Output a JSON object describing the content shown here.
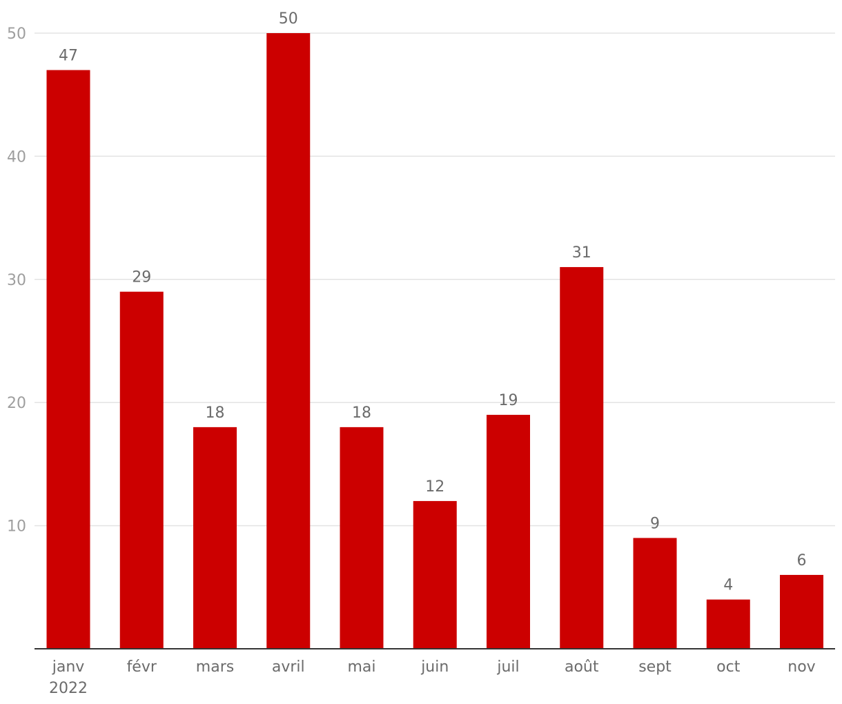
{
  "chart_data": {
    "type": "bar",
    "categories": [
      "janv",
      "févr",
      "mars",
      "avril",
      "mai",
      "juin",
      "juil",
      "août",
      "sept",
      "oct",
      "nov"
    ],
    "category_sublabels": [
      "2022",
      "",
      "",
      "",
      "",
      "",
      "",
      "",
      "",
      "",
      ""
    ],
    "values": [
      47,
      29,
      18,
      50,
      18,
      12,
      19,
      31,
      9,
      4,
      6
    ],
    "ylim": [
      0,
      50
    ],
    "yticks": [
      10,
      20,
      30,
      40,
      50
    ],
    "grid": true,
    "data_labels": true,
    "colors": {
      "bar": "#cc0000",
      "grid": "#e3e3e3",
      "axis": "#333333"
    }
  }
}
